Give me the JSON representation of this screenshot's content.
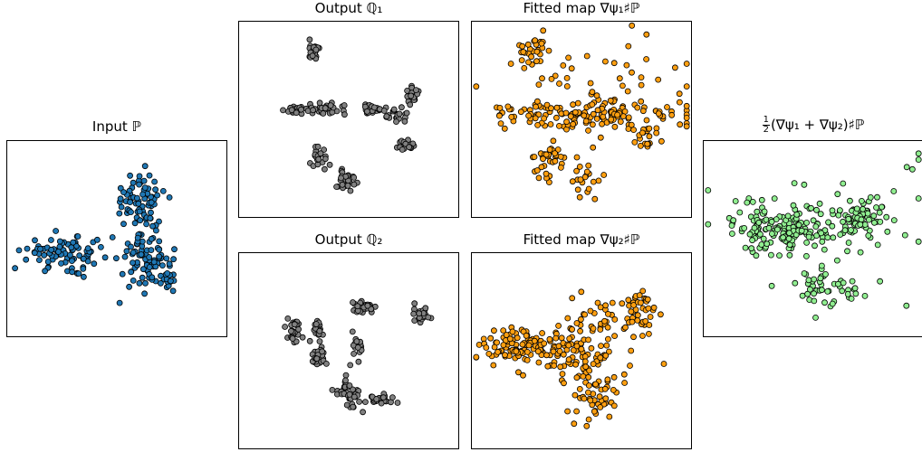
{
  "titles": {
    "input": "Input ℙ",
    "out1": "Output ℚ₁",
    "fit1": "Fitted map ∇ψ₁♯ℙ",
    "out2": "Output ℚ₂",
    "fit2": "Fitted map ∇ψ₂♯ℙ",
    "avg_prefix": "1",
    "avg_den": "2",
    "avg": "(∇ψ₁ + ∇ψ₂)♯ℙ"
  },
  "colors": {
    "input": "#1f77b4",
    "output": "#808080",
    "fitted": "#ff9f10",
    "average": "#90ee90",
    "edge": "#000000"
  },
  "chart_data": [
    {
      "id": "input",
      "type": "scatter",
      "title": "Input ℙ",
      "xlim": [
        0,
        100
      ],
      "ylim": [
        0,
        100
      ],
      "grid": false,
      "clusters": [
        {
          "cx": 60,
          "cy": 70,
          "sx": 6,
          "sy": 7,
          "n": 70
        },
        {
          "cx": 27,
          "cy": 43,
          "sx": 9,
          "sy": 4,
          "n": 90
        },
        {
          "cx": 63,
          "cy": 40,
          "sx": 6,
          "sy": 8,
          "n": 80
        },
        {
          "cx": 69,
          "cy": 28,
          "sx": 5,
          "sy": 3,
          "n": 20
        }
      ]
    },
    {
      "id": "out1",
      "type": "scatter",
      "title": "Output ℚ₁",
      "xlim": [
        0,
        100
      ],
      "ylim": [
        0,
        100
      ],
      "grid": false,
      "clusters": [
        {
          "cx": 34,
          "cy": 85,
          "sx": 1.5,
          "sy": 3,
          "n": 25
        },
        {
          "cx": 26,
          "cy": 55,
          "sx": 2.5,
          "sy": 1.2,
          "n": 25
        },
        {
          "cx": 39,
          "cy": 55,
          "sx": 5,
          "sy": 1.3,
          "n": 35
        },
        {
          "cx": 61,
          "cy": 55,
          "sx": 2.5,
          "sy": 1.5,
          "n": 25
        },
        {
          "cx": 72,
          "cy": 52,
          "sx": 2.5,
          "sy": 2,
          "n": 20
        },
        {
          "cx": 79,
          "cy": 62,
          "sx": 1.5,
          "sy": 2.5,
          "n": 20
        },
        {
          "cx": 77,
          "cy": 37,
          "sx": 2,
          "sy": 1.5,
          "n": 20
        },
        {
          "cx": 37,
          "cy": 30,
          "sx": 2,
          "sy": 3.5,
          "n": 25
        },
        {
          "cx": 49,
          "cy": 19,
          "sx": 2,
          "sy": 3,
          "n": 25
        }
      ]
    },
    {
      "id": "fit1",
      "type": "scatter",
      "title": "Fitted map ∇ψ₁♯ℙ",
      "xlim": [
        0,
        100
      ],
      "ylim": [
        0,
        100
      ],
      "grid": false,
      "clusters": [
        {
          "cx": 28,
          "cy": 85,
          "sx": 4,
          "sy": 4,
          "n": 25
        },
        {
          "cx": 50,
          "cy": 52,
          "sx": 20,
          "sy": 4,
          "n": 150
        },
        {
          "cx": 35,
          "cy": 30,
          "sx": 5,
          "sy": 6,
          "n": 35
        },
        {
          "cx": 52,
          "cy": 20,
          "sx": 4,
          "sy": 5,
          "n": 20
        },
        {
          "cx": 78,
          "cy": 40,
          "sx": 4,
          "sy": 4,
          "n": 20
        },
        {
          "cx": 55,
          "cy": 70,
          "sx": 25,
          "sy": 15,
          "n": 40
        }
      ]
    },
    {
      "id": "out2",
      "type": "scatter",
      "title": "Output ℚ₂",
      "xlim": [
        0,
        100
      ],
      "ylim": [
        0,
        100
      ],
      "grid": false,
      "clusters": [
        {
          "cx": 25,
          "cy": 60,
          "sx": 1.8,
          "sy": 3.5,
          "n": 25
        },
        {
          "cx": 36,
          "cy": 60,
          "sx": 1.2,
          "sy": 2.5,
          "n": 15
        },
        {
          "cx": 56,
          "cy": 72,
          "sx": 3,
          "sy": 1.8,
          "n": 30
        },
        {
          "cx": 84,
          "cy": 68,
          "sx": 2,
          "sy": 2.5,
          "n": 20
        },
        {
          "cx": 54,
          "cy": 52,
          "sx": 1.8,
          "sy": 3,
          "n": 20
        },
        {
          "cx": 36,
          "cy": 47,
          "sx": 2,
          "sy": 3,
          "n": 25
        },
        {
          "cx": 48,
          "cy": 30,
          "sx": 2,
          "sy": 3,
          "n": 22
        },
        {
          "cx": 52,
          "cy": 27,
          "sx": 1.8,
          "sy": 3.5,
          "n": 20
        },
        {
          "cx": 65,
          "cy": 25,
          "sx": 3,
          "sy": 1.5,
          "n": 25
        }
      ]
    },
    {
      "id": "fit2",
      "type": "scatter",
      "title": "Fitted map ∇ψ₂♯ℙ",
      "xlim": [
        0,
        100
      ],
      "ylim": [
        0,
        100
      ],
      "grid": false,
      "clusters": [
        {
          "cx": 25,
          "cy": 52,
          "sx": 11,
          "sy": 5,
          "n": 110
        },
        {
          "cx": 50,
          "cy": 48,
          "sx": 10,
          "sy": 7,
          "n": 60
        },
        {
          "cx": 62,
          "cy": 65,
          "sx": 9,
          "sy": 6,
          "n": 45
        },
        {
          "cx": 78,
          "cy": 70,
          "sx": 5,
          "sy": 6,
          "n": 30
        },
        {
          "cx": 54,
          "cy": 28,
          "sx": 7,
          "sy": 8,
          "n": 50
        }
      ]
    },
    {
      "id": "avg",
      "type": "scatter",
      "title": "(∇ψ₁ + ∇ψ₂)♯ℙ",
      "xlim": [
        0,
        100
      ],
      "ylim": [
        0,
        100
      ],
      "grid": false,
      "clusters": [
        {
          "cx": 30,
          "cy": 55,
          "sx": 10,
          "sy": 6,
          "n": 110
        },
        {
          "cx": 48,
          "cy": 55,
          "sx": 7,
          "sy": 5,
          "n": 50
        },
        {
          "cx": 70,
          "cy": 62,
          "sx": 7,
          "sy": 5,
          "n": 70
        },
        {
          "cx": 52,
          "cy": 27,
          "sx": 5,
          "sy": 5,
          "n": 30
        },
        {
          "cx": 65,
          "cy": 20,
          "sx": 4,
          "sy": 4,
          "n": 15
        },
        {
          "cx": 55,
          "cy": 60,
          "sx": 30,
          "sy": 18,
          "n": 35
        }
      ]
    }
  ]
}
